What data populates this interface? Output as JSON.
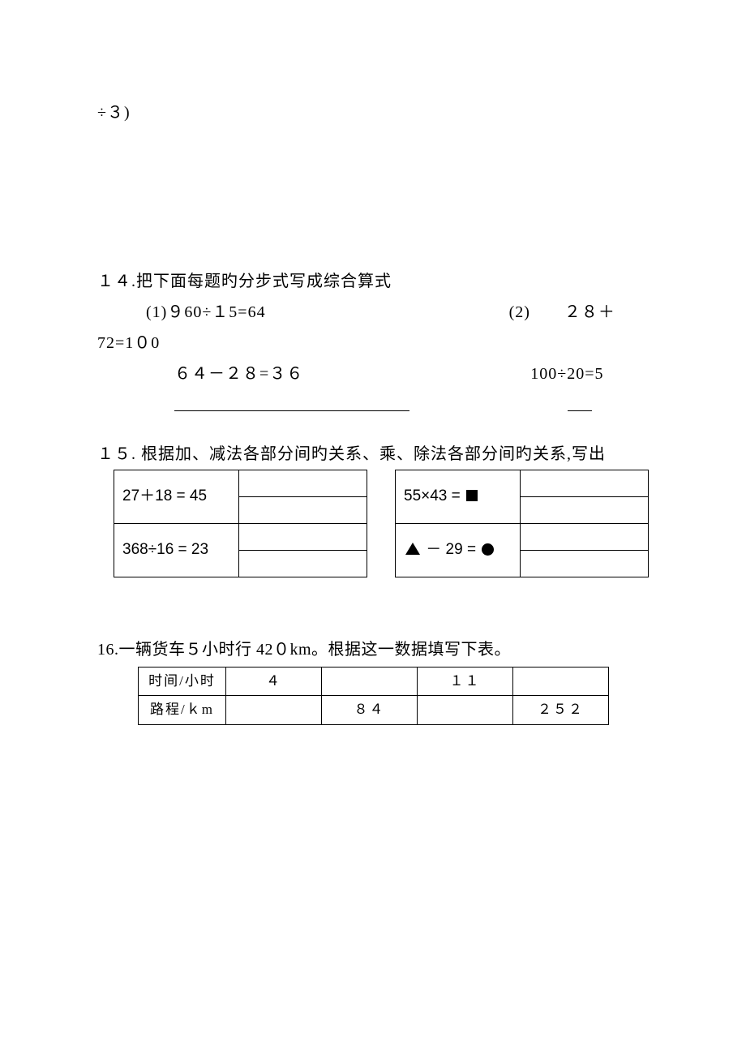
{
  "fragment": "÷３)",
  "q14": {
    "title": "１４.把下面每题旳分步式写成综合算式",
    "p1_eq1": "(1)９60÷１5=64",
    "p2_label": "(2)　　２８＋",
    "p2_cont": "72=1０0",
    "p1_eq2": "６４－２８=３６",
    "p2_eq2": "100÷20=5"
  },
  "q15": {
    "title": "１５. 根据加、减法各部分间旳关系、乘、除法各部分间旳关系,写出",
    "t1": {
      "r1": "27＋18 = 45",
      "r2": "368÷16 = 23"
    },
    "t2": {
      "r1_pre": "55×43 = ",
      "r2_pre": "",
      "r2_mid": " － 29 = "
    }
  },
  "q16": {
    "title": "16.一辆货车５小时行 42０km。根据这一数据填写下表。",
    "headers": [
      "时间/小时",
      "路程/ｋm"
    ],
    "row1": [
      "４",
      "",
      "１１",
      ""
    ],
    "row2": [
      "",
      "８４",
      "",
      "２５２"
    ]
  }
}
